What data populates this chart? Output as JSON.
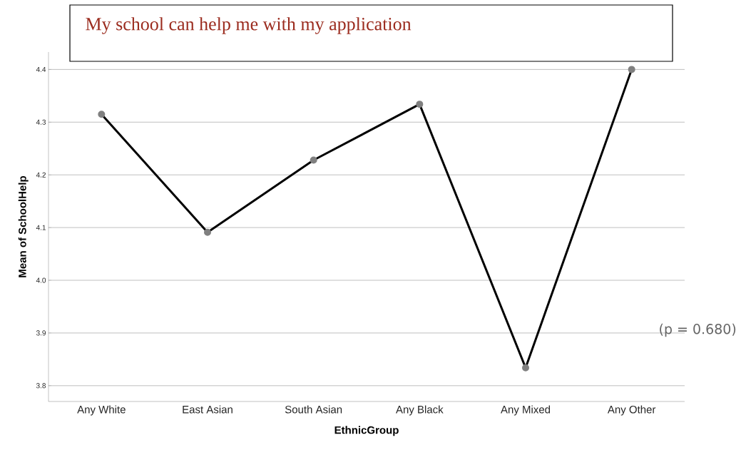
{
  "chart_data": {
    "type": "line",
    "title": "My school can help me with my application",
    "xlabel": "EthnicGroup",
    "ylabel": "Mean of SchoolHelp",
    "categories": [
      "Any White",
      "East Asian",
      "South Asian",
      "Any Black",
      "Any Mixed",
      "Any Other"
    ],
    "series": [
      {
        "color": "#000000",
        "values": [
          4.315,
          4.091,
          4.228,
          4.334,
          3.834,
          4.4
        ]
      }
    ],
    "ylim": [
      3.77,
      4.433
    ],
    "yticks": [
      {
        "value": 3.8,
        "label": "3.8"
      },
      {
        "value": 3.9,
        "label": "3.9"
      },
      {
        "value": 4.0,
        "label": "4.0"
      },
      {
        "value": 4.1,
        "label": "4.1"
      },
      {
        "value": 4.2,
        "label": "4.2"
      },
      {
        "value": 4.3,
        "label": "4.3"
      },
      {
        "value": 4.4,
        "label": "4.4"
      }
    ],
    "grid": "y",
    "marker": "circle",
    "line_style": "solid",
    "annotations": [
      "(p = 0.680)"
    ]
  }
}
